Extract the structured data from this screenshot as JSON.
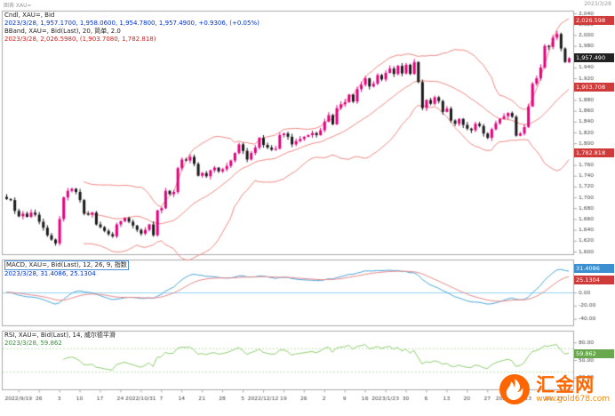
{
  "meta": {
    "top_left": "图表 XAU=",
    "top_right": "2023/3/28"
  },
  "legends": {
    "main": {
      "line1": "Cndl, XAU=, Bid",
      "line2": "2023/3/28, 1,957.1700, 1,958.0600, 1,954.7800, 1,957.4900, +0.9306, (+0.05%)",
      "line3": "BBand, XAU=, Bid(Last), 20, 简单, 2.0",
      "line4": "2023/3/28, 2,026.5980, (1,903.7080, 1,782.818)"
    },
    "macd": {
      "line1": "MACD, XAU=, Bid(Last), 12, 26, 9, 指数",
      "line2": "2023/3/28, 31.4086, 25.1304"
    },
    "rsi": {
      "line1": "RSI, XAU=, Bid(Last), 14, 威尔德平滑",
      "line2": "2023/3/28, 59.862"
    }
  },
  "badges": {
    "price_upper": "2,026.598",
    "price_current": "1,957.490",
    "price_middle": "1,903.708",
    "price_lower": "1,782.818",
    "macd_main": "31.4086",
    "macd_signal": "25.1304",
    "rsi": "59.862"
  },
  "watermark": {
    "name": "汇金网",
    "url": "www.gold678.com"
  },
  "colors": {
    "up": "#e6007e",
    "down": "#1a1a1a",
    "bband": "#f08a84",
    "macd_line": "#4da6d9",
    "macd_signal": "#e88a8a",
    "macd_zero": "#8fd4f0",
    "rsi": "#8fcf6f",
    "rsi_guide": "#bfe3ae",
    "badge_red": "#cf3b3b",
    "badge_dark": "#222222",
    "badge_blue": "#3c8fd0",
    "badge_green": "#6aa84f",
    "panel_border": "#aaaaaa",
    "axis_text": "#444444"
  },
  "chart_data": {
    "type": "candlestick",
    "symbol": "XAU=",
    "last_price": 1957.49,
    "closes": [
      1697,
      1695,
      1675,
      1665,
      1670,
      1664,
      1672,
      1668,
      1655,
      1644,
      1630,
      1622,
      1615,
      1660,
      1700,
      1712,
      1716,
      1710,
      1695,
      1670,
      1668,
      1672,
      1650,
      1645,
      1638,
      1632,
      1628,
      1650,
      1656,
      1662,
      1655,
      1648,
      1640,
      1633,
      1640,
      1650,
      1630,
      1676,
      1680,
      1712,
      1706,
      1710,
      1754,
      1770,
      1768,
      1775,
      1762,
      1740,
      1745,
      1739,
      1750,
      1755,
      1748,
      1752,
      1758,
      1768,
      1782,
      1798,
      1786,
      1770,
      1782,
      1792,
      1810,
      1797,
      1792,
      1788,
      1790,
      1815,
      1818,
      1812,
      1798,
      1804,
      1808,
      1812,
      1815,
      1819,
      1815,
      1824,
      1840,
      1852,
      1835,
      1865,
      1872,
      1876,
      1890,
      1877,
      1900,
      1908,
      1920,
      1905,
      1910,
      1926,
      1918,
      1930,
      1938,
      1928,
      1943,
      1929,
      1945,
      1928,
      1950,
      1913,
      1865,
      1880,
      1873,
      1885,
      1878,
      1858,
      1864,
      1842,
      1836,
      1845,
      1834,
      1827,
      1824,
      1836,
      1832,
      1818,
      1810,
      1826,
      1837,
      1845,
      1850,
      1856,
      1849,
      1814,
      1818,
      1830,
      1868,
      1910,
      1920,
      1940,
      1980,
      1978,
      1995,
      2002,
      1975,
      1950,
      1957
    ],
    "bollinger": {
      "window": 20,
      "mult": 2,
      "current": {
        "upper": 2026.598,
        "middle": 1903.708,
        "lower": 1782.818
      }
    },
    "macd": {
      "fast": 12,
      "slow": 26,
      "signal": 9,
      "current": {
        "macd": 31.4086,
        "signal": 25.1304
      }
    },
    "rsi": {
      "period": 14,
      "current": 59.862
    },
    "price_axis": {
      "min": 1595,
      "max": 2045,
      "tick_start": 1600,
      "tick_end": 2040,
      "tick_step": 20
    },
    "macd_axis": {
      "min": -50,
      "max": 50,
      "ticks": [
        40,
        20,
        0,
        -20,
        -40
      ]
    },
    "rsi_axis": {
      "min": 0,
      "max": 100,
      "ticks": [
        80,
        50,
        20
      ],
      "guides": [
        70,
        30
      ]
    },
    "date_ticks": [
      {
        "i": 3,
        "label": "2022/9/19"
      },
      {
        "i": 8,
        "label": "26"
      },
      {
        "i": 13,
        "label": "3"
      },
      {
        "i": 18,
        "label": "10"
      },
      {
        "i": 23,
        "label": "17"
      },
      {
        "i": 28,
        "label": "24"
      },
      {
        "i": 33,
        "label": "2022/10/31"
      },
      {
        "i": 38,
        "label": "7"
      },
      {
        "i": 43,
        "label": "14"
      },
      {
        "i": 48,
        "label": "21"
      },
      {
        "i": 53,
        "label": "28"
      },
      {
        "i": 58,
        "label": "5"
      },
      {
        "i": 63,
        "label": "2022/12/12"
      },
      {
        "i": 68,
        "label": "19"
      },
      {
        "i": 73,
        "label": "26"
      },
      {
        "i": 78,
        "label": "2"
      },
      {
        "i": 83,
        "label": "9"
      },
      {
        "i": 88,
        "label": "16"
      },
      {
        "i": 93,
        "label": "2023/1/23"
      },
      {
        "i": 98,
        "label": "30"
      },
      {
        "i": 103,
        "label": "6"
      },
      {
        "i": 108,
        "label": "13"
      },
      {
        "i": 113,
        "label": "20"
      },
      {
        "i": 118,
        "label": "27"
      },
      {
        "i": 123,
        "label": "2023/3/6"
      },
      {
        "i": 128,
        "label": "13"
      },
      {
        "i": 133,
        "label": "20"
      },
      {
        "i": 138,
        "label": "27"
      }
    ]
  }
}
